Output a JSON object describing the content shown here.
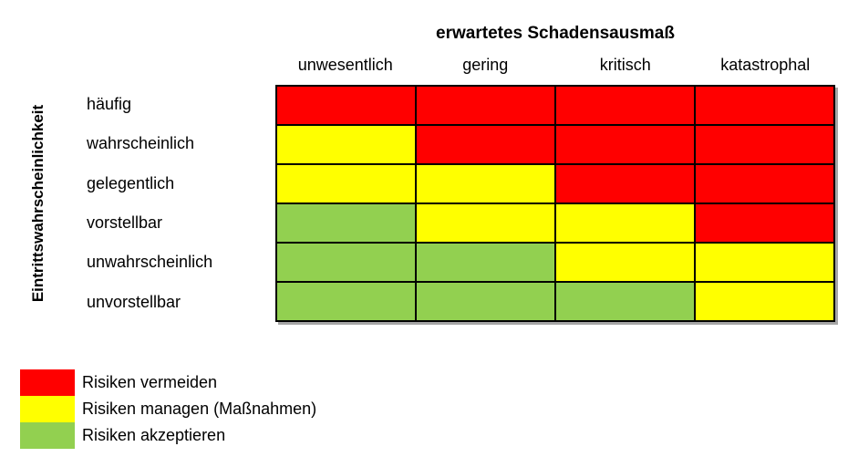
{
  "chart_data": {
    "type": "heatmap",
    "title": "erwartetes Schadensausmaß",
    "xlabel": "erwartetes Schadensausmaß",
    "ylabel": "Eintrittswahrscheinlichkeit",
    "x_categories": [
      "unwesentlich",
      "gering",
      "kritisch",
      "katastrophal"
    ],
    "y_categories": [
      "häufig",
      "wahrscheinlich",
      "gelegentlich",
      "vorstellbar",
      "unwahrscheinlich",
      "unvorstellbar"
    ],
    "values": [
      [
        "red",
        "red",
        "red",
        "red"
      ],
      [
        "yellow",
        "red",
        "red",
        "red"
      ],
      [
        "yellow",
        "yellow",
        "red",
        "red"
      ],
      [
        "green",
        "yellow",
        "yellow",
        "red"
      ],
      [
        "green",
        "green",
        "yellow",
        "yellow"
      ],
      [
        "green",
        "green",
        "green",
        "yellow"
      ]
    ],
    "palette": {
      "red": "#FF0000",
      "yellow": "#FFFF00",
      "green": "#92D050"
    },
    "border_color": "#000000",
    "legend_position": "bottom-left",
    "grid": true,
    "legend": [
      {
        "color": "red",
        "label": "Risiken vermeiden"
      },
      {
        "color": "yellow",
        "label": "Risiken managen (Maßnahmen)"
      },
      {
        "color": "green",
        "label": "Risiken akzeptieren"
      }
    ]
  }
}
